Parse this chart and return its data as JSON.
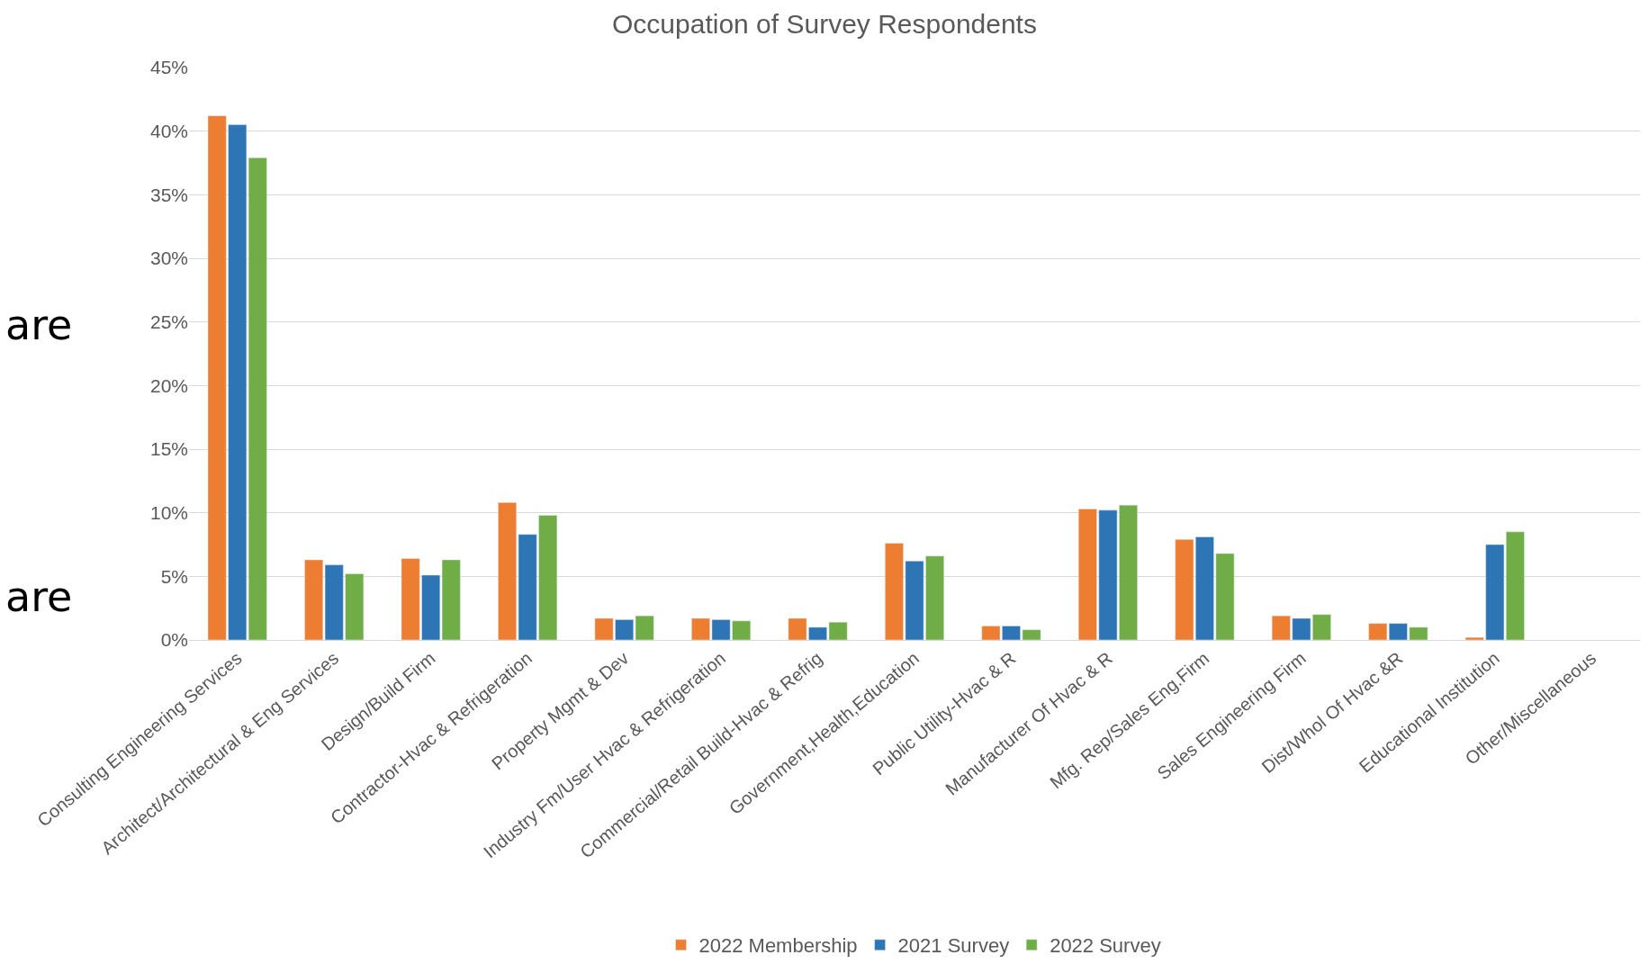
{
  "chart_data": {
    "type": "bar",
    "title": "Occupation of Survey Respondents",
    "categories": [
      "Consulting Engineering Services",
      "Architect/Architectural & Eng Services",
      "Design/Build Firm",
      "Contractor-Hvac & Refrigeration",
      "Property Mgmt & Dev",
      "Industry Fm/User Hvac & Refrigeration",
      "Commercial/Retail Build-Hvac & Refrig",
      "Government,Health,Education",
      "Public Utility-Hvac & R",
      "Manufacturer Of Hvac & R",
      "Mfg. Rep/Sales Eng.Firm",
      "Sales Engineering Firm",
      "Dist/Whol Of Hvac &R",
      "Educational Institution",
      "Other/Miscellaneous"
    ],
    "series": [
      {
        "name": "2022 Membership",
        "color": "#ed7d31",
        "values": [
          41.2,
          6.3,
          6.4,
          10.8,
          1.7,
          1.7,
          1.7,
          7.6,
          1.1,
          10.3,
          7.9,
          1.9,
          1.3,
          0.2,
          null
        ]
      },
      {
        "name": "2021 Survey",
        "color": "#2e75b6",
        "values": [
          40.5,
          5.9,
          5.1,
          8.3,
          1.6,
          1.6,
          1.0,
          6.2,
          1.1,
          10.2,
          8.1,
          1.7,
          1.3,
          7.5,
          null
        ]
      },
      {
        "name": "2022 Survey",
        "color": "#70ad47",
        "values": [
          37.9,
          5.2,
          6.3,
          9.8,
          1.9,
          1.5,
          1.4,
          6.6,
          0.8,
          10.6,
          6.8,
          2.0,
          1.0,
          8.5,
          null
        ]
      }
    ],
    "ylim": [
      0,
      45
    ],
    "yticks": [
      {
        "value": 0,
        "label": "0%"
      },
      {
        "value": 5,
        "label": "5%"
      },
      {
        "value": 10,
        "label": "10%"
      },
      {
        "value": 15,
        "label": "15%"
      },
      {
        "value": 20,
        "label": "20%"
      },
      {
        "value": 25,
        "label": "25%"
      },
      {
        "value": 30,
        "label": "30%"
      },
      {
        "value": 35,
        "label": "35%"
      },
      {
        "value": 40,
        "label": "40%"
      },
      {
        "value": 45,
        "label": "45%"
      }
    ],
    "grid": "y",
    "legend": "bottom",
    "annotations": [
      "are",
      "are"
    ]
  }
}
